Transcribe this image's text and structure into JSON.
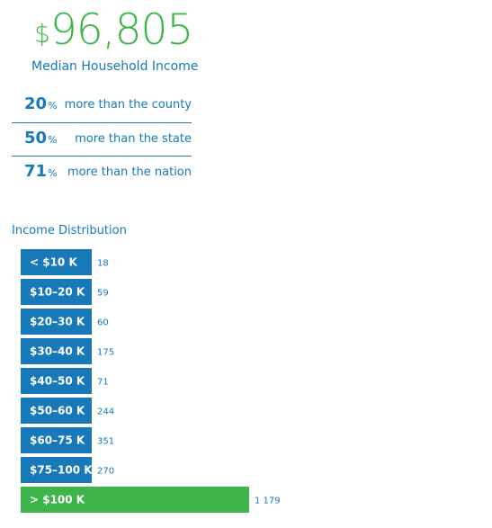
{
  "summary": {
    "currency_symbol": "$",
    "median_income": "96,805",
    "median_label": "Median Household Income",
    "comparisons": [
      {
        "pct": "20",
        "symbol": "%",
        "text": "more than the county"
      },
      {
        "pct": "50",
        "symbol": "%",
        "text": "more than the state"
      },
      {
        "pct": "71",
        "symbol": "%",
        "text": "more than the nation"
      }
    ]
  },
  "colors": {
    "accent_green": "#3db54a",
    "brand_blue": "#1779b8",
    "bar_blue": "#1779b8",
    "highlight_bar": "#3db54a"
  },
  "chart_data": {
    "type": "bar",
    "orientation": "horizontal",
    "title": "Income Distribution",
    "categories": [
      "< $10 K",
      "$10–20 K",
      "$20–30 K",
      "$30–40 K",
      "$40–50 K",
      "$50–60 K",
      "$60–75 K",
      "$75–100 K",
      "> $100 K"
    ],
    "values": [
      18,
      59,
      60,
      175,
      71,
      244,
      351,
      270,
      1179
    ],
    "value_labels": [
      "18",
      "59",
      "60",
      "175",
      "71",
      "244",
      "351",
      "270",
      "1 179"
    ],
    "highlight_index": 8
  }
}
